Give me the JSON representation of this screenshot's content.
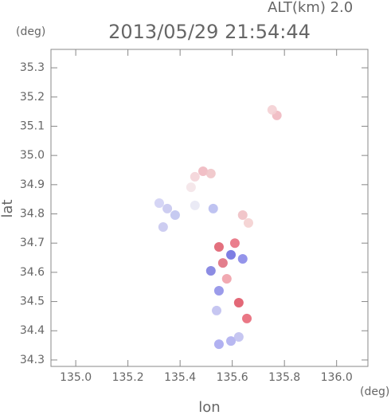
{
  "chart_data": {
    "type": "scatter",
    "title": "2013/05/29 21:54:44",
    "annotation": "ALT(km) 2.0",
    "y_unit": "(deg)",
    "x_unit": "(deg)",
    "x_label": "lon",
    "y_label": "lat",
    "xlim": [
      134.905,
      136.12
    ],
    "ylim": [
      34.278,
      35.363
    ],
    "xticks": [
      {
        "value": 135.0,
        "label": "135.0"
      },
      135.2,
      135.4,
      135.6,
      135.8,
      {
        "value": 136.0,
        "label": "136.0"
      }
    ],
    "yticks": [
      34.3,
      34.4,
      34.5,
      34.6,
      34.7,
      34.8,
      34.9,
      {
        "value": 35.0,
        "label": "35.0"
      },
      35.1,
      35.2,
      35.3
    ],
    "x": [
      135.771,
      135.753,
      135.488,
      135.518,
      135.457,
      135.442,
      135.351,
      135.32,
      135.381,
      135.457,
      135.527,
      135.64,
      135.662,
      135.335,
      135.549,
      135.595,
      135.564,
      135.518,
      135.579,
      135.549,
      135.625,
      135.54,
      135.656,
      135.64,
      135.61,
      135.595,
      135.549,
      135.625
    ],
    "y": [
      35.137,
      35.156,
      34.946,
      34.938,
      34.927,
      34.891,
      34.818,
      34.837,
      34.796,
      34.829,
      34.818,
      34.796,
      34.769,
      34.755,
      34.687,
      34.66,
      34.632,
      34.605,
      34.578,
      34.537,
      34.496,
      34.469,
      34.442,
      34.646,
      34.7,
      34.365,
      34.354,
      34.379
    ],
    "colors": [
      "#f0b8c0",
      "#f4d0d4",
      "#f0b8c0",
      "#f0c4c8",
      "#f4d4d8",
      "#f4e4e8",
      "#c8c8f0",
      "#d0d0f4",
      "#c0c4f0",
      "#e8e8f4",
      "#b8bcf0",
      "#f0c0c4",
      "#f4d0d0",
      "#c8c8f0",
      "#e06070",
      "#7070e0",
      "#e07080",
      "#8080e0",
      "#f0a0a8",
      "#9090e8",
      "#e05868",
      "#c0c0f0",
      "#e86878",
      "#8888e8",
      "#e87080",
      "#b0b0f0",
      "#a8a8f0",
      "#c0c0f0"
    ]
  }
}
